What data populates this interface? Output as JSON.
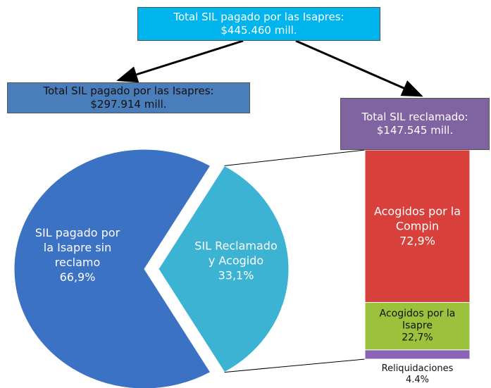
{
  "chart_data": {
    "type": "pie",
    "annotations": [
      {
        "lines": [
          "Total SIL pagado por las Isapres:",
          "$445.460 mill."
        ],
        "color": "#00b4ee"
      },
      {
        "lines": [
          "Total SIL pagado por las Isapres:",
          "$297.914 mill."
        ],
        "color": "#4a7ebb"
      },
      {
        "lines": [
          "Total SIL  reclamado:",
          "$147.545 mill."
        ],
        "color": "#8064a2"
      }
    ],
    "categories": [
      "SIL pagado por la Isapre sin reclamo",
      "SIL Reclamado y Acogido"
    ],
    "values": [
      66.9,
      33.1
    ],
    "value_labels": [
      "66,9%",
      "33,1%"
    ],
    "colors": [
      "#3b72c4",
      "#3db3d3"
    ],
    "bar": {
      "categories": [
        "Acogidos por la Compin",
        "Acogidos por la Isapre",
        "Reliquidaciones"
      ],
      "values": [
        72.9,
        22.7,
        4.4
      ],
      "value_labels": [
        "72,9%",
        "22,7%",
        "4.4%"
      ],
      "colors": [
        "#d8403c",
        "#9cc23d",
        "#8a63b6"
      ]
    }
  }
}
